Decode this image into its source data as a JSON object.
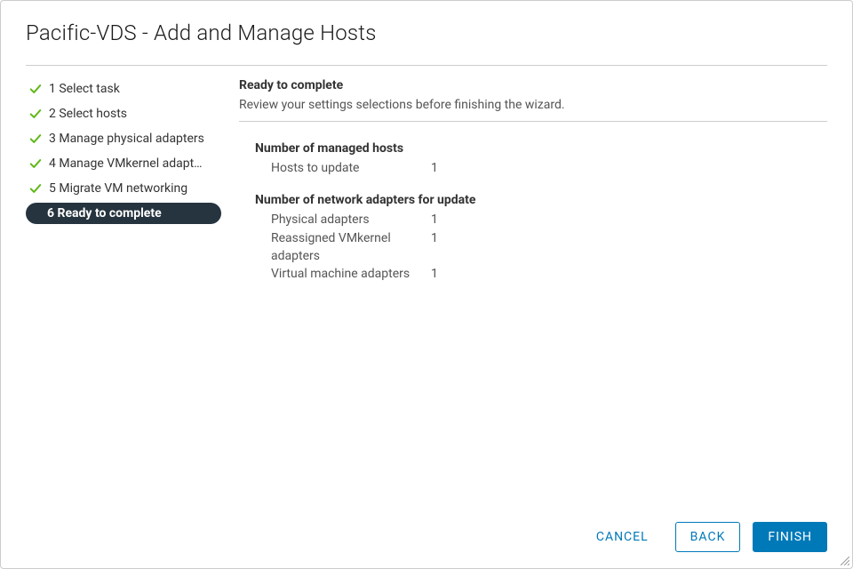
{
  "title": "Pacific-VDS - Add and Manage Hosts",
  "nav": {
    "items": [
      {
        "label": "1 Select task",
        "done": true,
        "active": false
      },
      {
        "label": "2 Select hosts",
        "done": true,
        "active": false
      },
      {
        "label": "3 Manage physical adapters",
        "done": true,
        "active": false
      },
      {
        "label": "4 Manage VMkernel adapt…",
        "done": true,
        "active": false
      },
      {
        "label": "5 Migrate VM networking",
        "done": true,
        "active": false
      },
      {
        "label": "6 Ready to complete",
        "done": false,
        "active": true
      }
    ]
  },
  "content": {
    "heading": "Ready to complete",
    "subheading": "Review your settings selections before finishing the wizard.",
    "sections": [
      {
        "title": "Number of managed hosts",
        "rows": [
          {
            "label": "Hosts to update",
            "value": "1"
          }
        ]
      },
      {
        "title": "Number of network adapters for update",
        "rows": [
          {
            "label": "Physical adapters",
            "value": "1"
          },
          {
            "label": "Reassigned VMkernel adapters",
            "value": "1"
          },
          {
            "label": "Virtual machine adapters",
            "value": "1"
          }
        ]
      }
    ]
  },
  "footer": {
    "cancel": "CANCEL",
    "back": "BACK",
    "finish": "FINISH"
  },
  "colors": {
    "accent": "#0079b8",
    "check": "#5eb715",
    "nav_active_bg": "#26343f"
  }
}
